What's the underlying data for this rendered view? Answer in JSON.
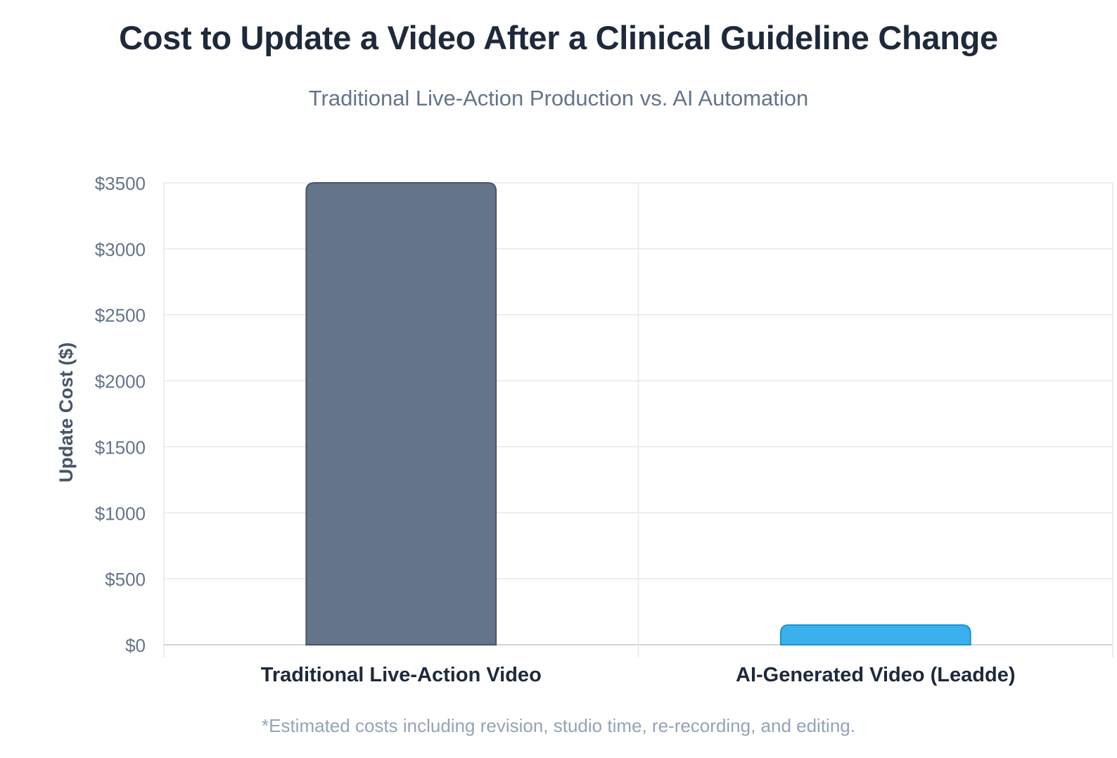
{
  "chart_data": {
    "type": "bar",
    "title": "Cost to Update a Video After a Clinical Guideline Change",
    "subtitle": "Traditional Live-Action Production vs. AI Automation",
    "xlabel": "",
    "ylabel": "Update Cost ($)",
    "categories": [
      "Traditional Live-Action Video",
      "AI-Generated Video (Leadde)"
    ],
    "values": [
      3500,
      150
    ],
    "ylim": [
      0,
      3500
    ],
    "yticks": [
      0,
      500,
      1000,
      1500,
      2000,
      2500,
      3000,
      3500
    ],
    "ytick_labels": [
      "$0",
      "$500",
      "$1000",
      "$1500",
      "$2000",
      "$2500",
      "$3000",
      "$3500"
    ],
    "colors": [
      "#64748b",
      "#3ab0ec"
    ],
    "border_colors": [
      "#475569",
      "#1f93cf"
    ],
    "grid": true,
    "legend": "none",
    "footnote": "*Estimated costs including revision, studio time, re-recording, and editing."
  }
}
